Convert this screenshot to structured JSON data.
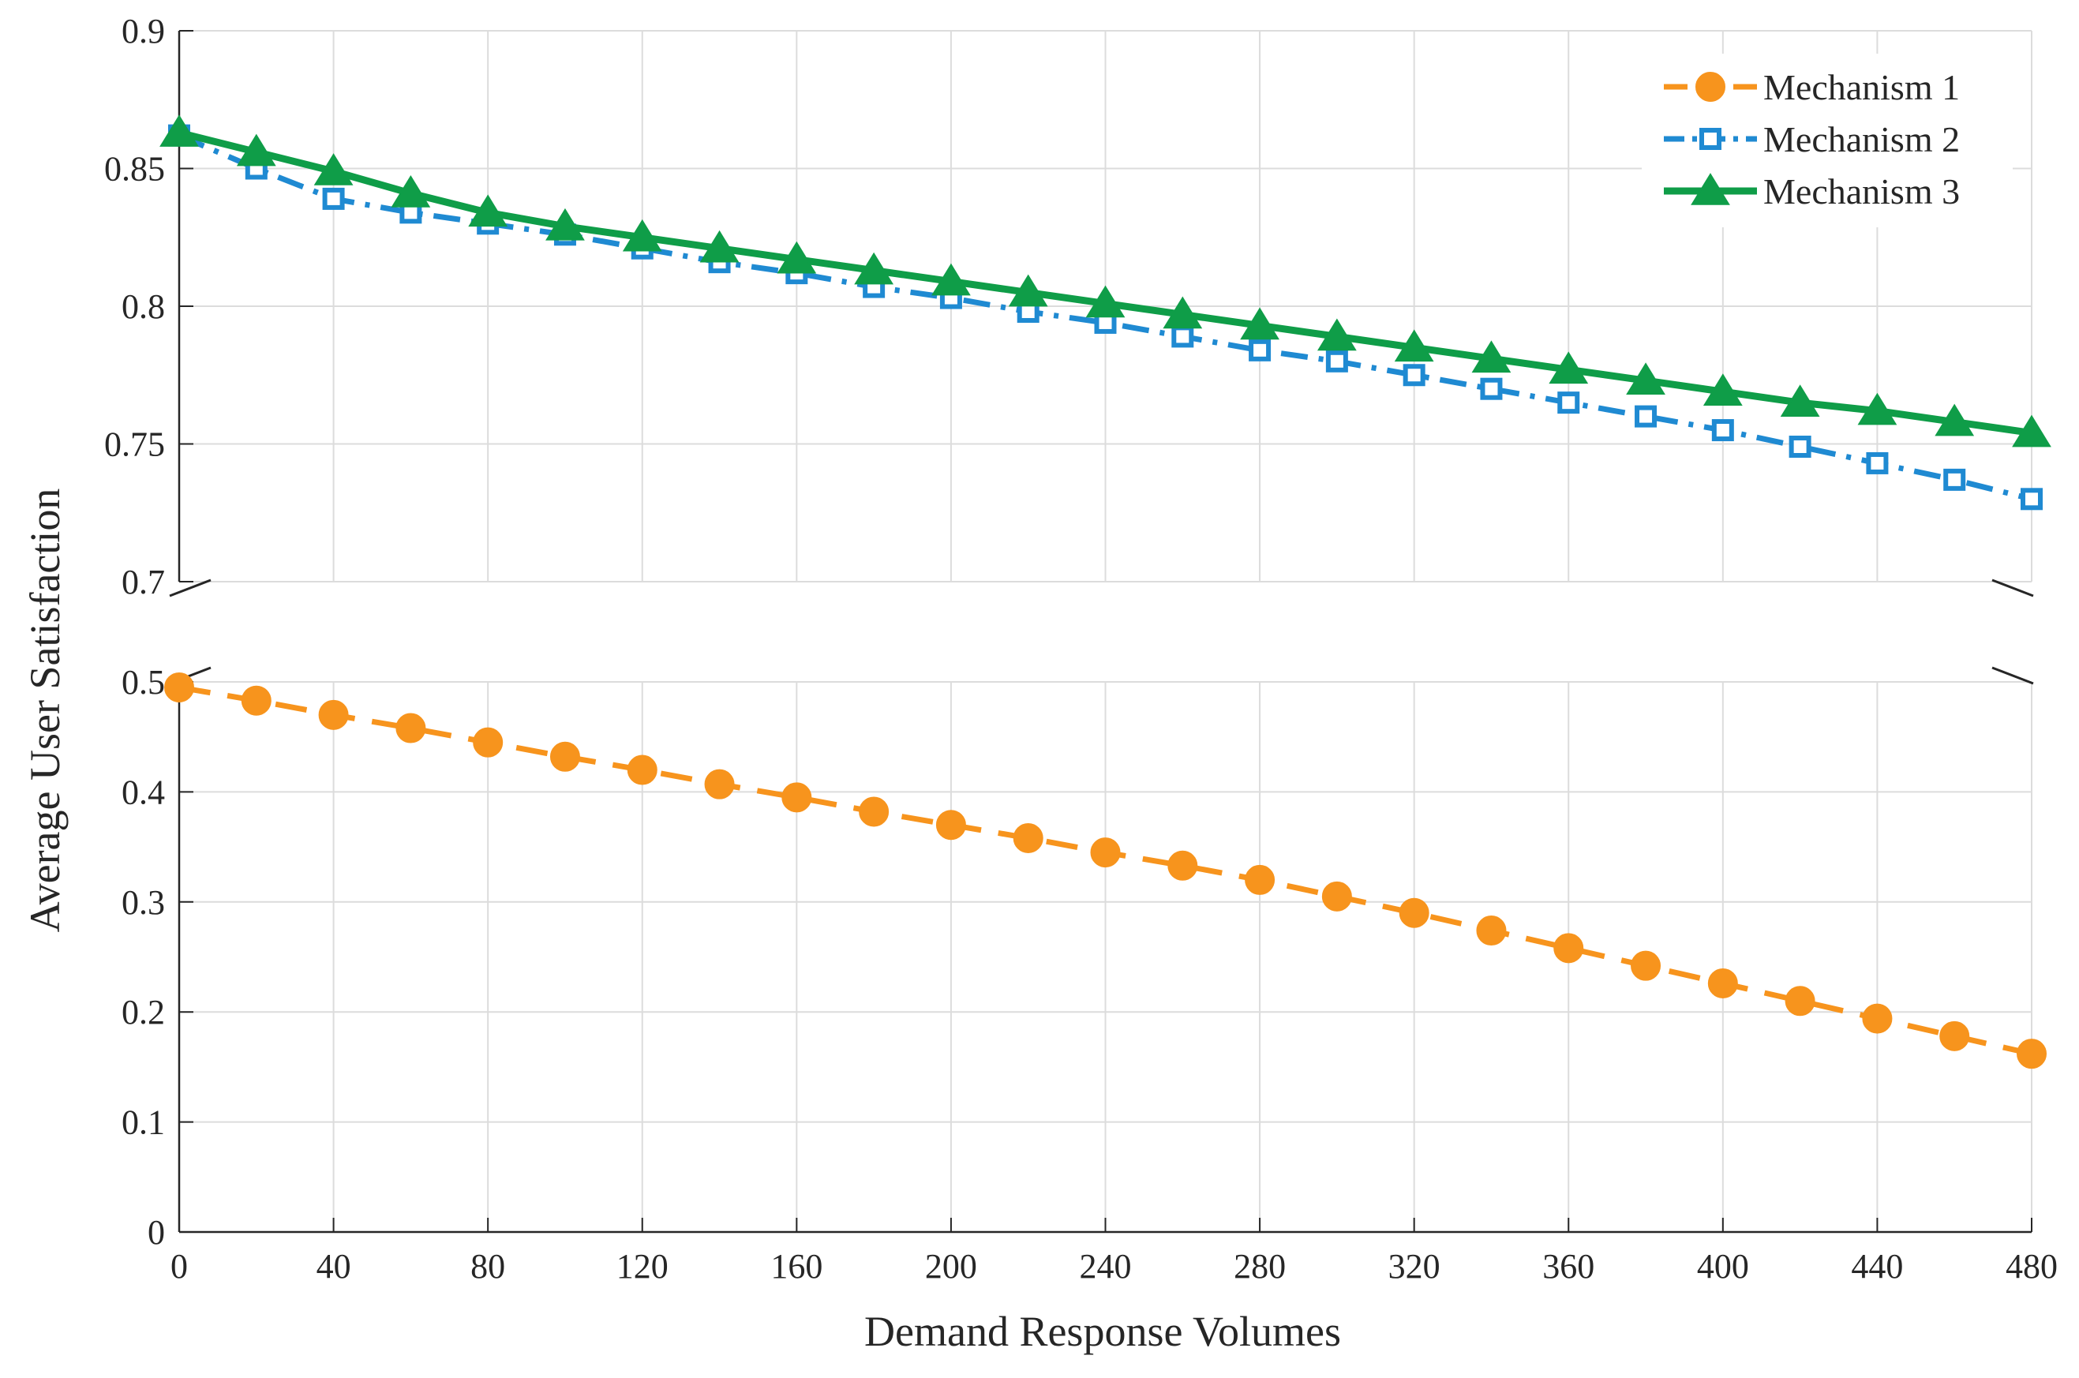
{
  "chart_data": {
    "type": "line",
    "title": "",
    "xlabel": "Demand Response Volumes",
    "ylabel": "Average User Satisfaction",
    "x": [
      0,
      20,
      40,
      60,
      80,
      100,
      120,
      140,
      160,
      180,
      200,
      220,
      240,
      260,
      280,
      300,
      320,
      340,
      360,
      380,
      400,
      420,
      440,
      460,
      480
    ],
    "xlim": [
      0,
      480
    ],
    "xticks": [
      0,
      40,
      80,
      120,
      160,
      200,
      240,
      280,
      320,
      360,
      400,
      440,
      480
    ],
    "xtick_labels": [
      "0",
      "40",
      "80",
      "120",
      "160",
      "200",
      "240",
      "280",
      "320",
      "360",
      "400",
      "440",
      "480"
    ],
    "broken_y_axis": true,
    "upper_panel": {
      "ylim": [
        0.7,
        0.9
      ],
      "yticks": [
        0.7,
        0.75,
        0.8,
        0.85,
        0.9
      ],
      "ytick_labels": [
        "0.7",
        "0.75",
        "0.8",
        "0.85",
        "0.9"
      ]
    },
    "lower_panel": {
      "ylim": [
        0,
        0.5
      ],
      "yticks": [
        0,
        0.1,
        0.2,
        0.3,
        0.4,
        0.5
      ],
      "ytick_labels": [
        "0",
        "0.1",
        "0.2",
        "0.3",
        "0.4",
        "0.5"
      ]
    },
    "grid": true,
    "legend_position": "top-right",
    "series": [
      {
        "name": "Mechanism 1",
        "panel": "lower",
        "color": "#F7941D",
        "marker": "circle",
        "line_style": "dashed",
        "values": [
          0.495,
          0.483,
          0.47,
          0.458,
          0.445,
          0.432,
          0.42,
          0.407,
          0.395,
          0.382,
          0.37,
          0.358,
          0.345,
          0.333,
          0.32,
          0.305,
          0.29,
          0.274,
          0.258,
          0.242,
          0.226,
          0.21,
          0.194,
          0.178,
          0.162
        ]
      },
      {
        "name": "Mechanism 2",
        "panel": "upper",
        "color": "#1F8AD2",
        "marker": "square",
        "line_style": "dash-dot",
        "values": [
          0.862,
          0.85,
          0.839,
          0.834,
          0.83,
          0.826,
          0.821,
          0.816,
          0.812,
          0.807,
          0.803,
          0.798,
          0.794,
          0.789,
          0.784,
          0.78,
          0.775,
          0.77,
          0.765,
          0.76,
          0.755,
          0.749,
          0.743,
          0.737,
          0.73
        ]
      },
      {
        "name": "Mechanism 3",
        "panel": "upper",
        "color": "#0F9D48",
        "marker": "triangle",
        "line_style": "solid",
        "values": [
          0.863,
          0.856,
          0.849,
          0.841,
          0.834,
          0.829,
          0.825,
          0.821,
          0.817,
          0.813,
          0.809,
          0.805,
          0.801,
          0.797,
          0.793,
          0.789,
          0.785,
          0.781,
          0.777,
          0.773,
          0.769,
          0.765,
          0.762,
          0.758,
          0.754
        ]
      }
    ]
  }
}
